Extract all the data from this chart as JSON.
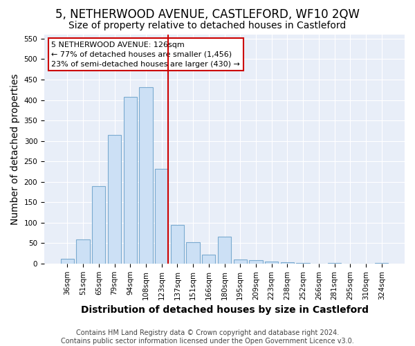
{
  "title": "5, NETHERWOOD AVENUE, CASTLEFORD, WF10 2QW",
  "subtitle": "Size of property relative to detached houses in Castleford",
  "xlabel": "Distribution of detached houses by size in Castleford",
  "ylabel": "Number of detached properties",
  "categories": [
    "36sqm",
    "51sqm",
    "65sqm",
    "79sqm",
    "94sqm",
    "108sqm",
    "123sqm",
    "137sqm",
    "151sqm",
    "166sqm",
    "180sqm",
    "195sqm",
    "209sqm",
    "223sqm",
    "238sqm",
    "252sqm",
    "266sqm",
    "281sqm",
    "295sqm",
    "310sqm",
    "324sqm"
  ],
  "values": [
    11,
    59,
    190,
    314,
    408,
    432,
    232,
    94,
    52,
    21,
    65,
    10,
    8,
    5,
    3,
    2,
    0,
    1,
    0,
    0,
    1
  ],
  "bar_color": "#cce0f5",
  "bar_edge_color": "#7aaad0",
  "highlight_index": 6,
  "highlight_line_color": "#cc0000",
  "annotation_text": "5 NETHERWOOD AVENUE: 126sqm\n← 77% of detached houses are smaller (1,456)\n23% of semi-detached houses are larger (430) →",
  "annotation_box_color": "#cc0000",
  "ylim": [
    0,
    560
  ],
  "yticks": [
    0,
    50,
    100,
    150,
    200,
    250,
    300,
    350,
    400,
    450,
    500,
    550
  ],
  "footnote": "Contains HM Land Registry data © Crown copyright and database right 2024.\nContains public sector information licensed under the Open Government Licence v3.0.",
  "bg_color": "#ffffff",
  "plot_bg_color": "#e8eef8",
  "grid_color": "#ffffff",
  "title_fontsize": 12,
  "subtitle_fontsize": 10,
  "tick_fontsize": 7.5,
  "label_fontsize": 10,
  "footnote_fontsize": 7
}
